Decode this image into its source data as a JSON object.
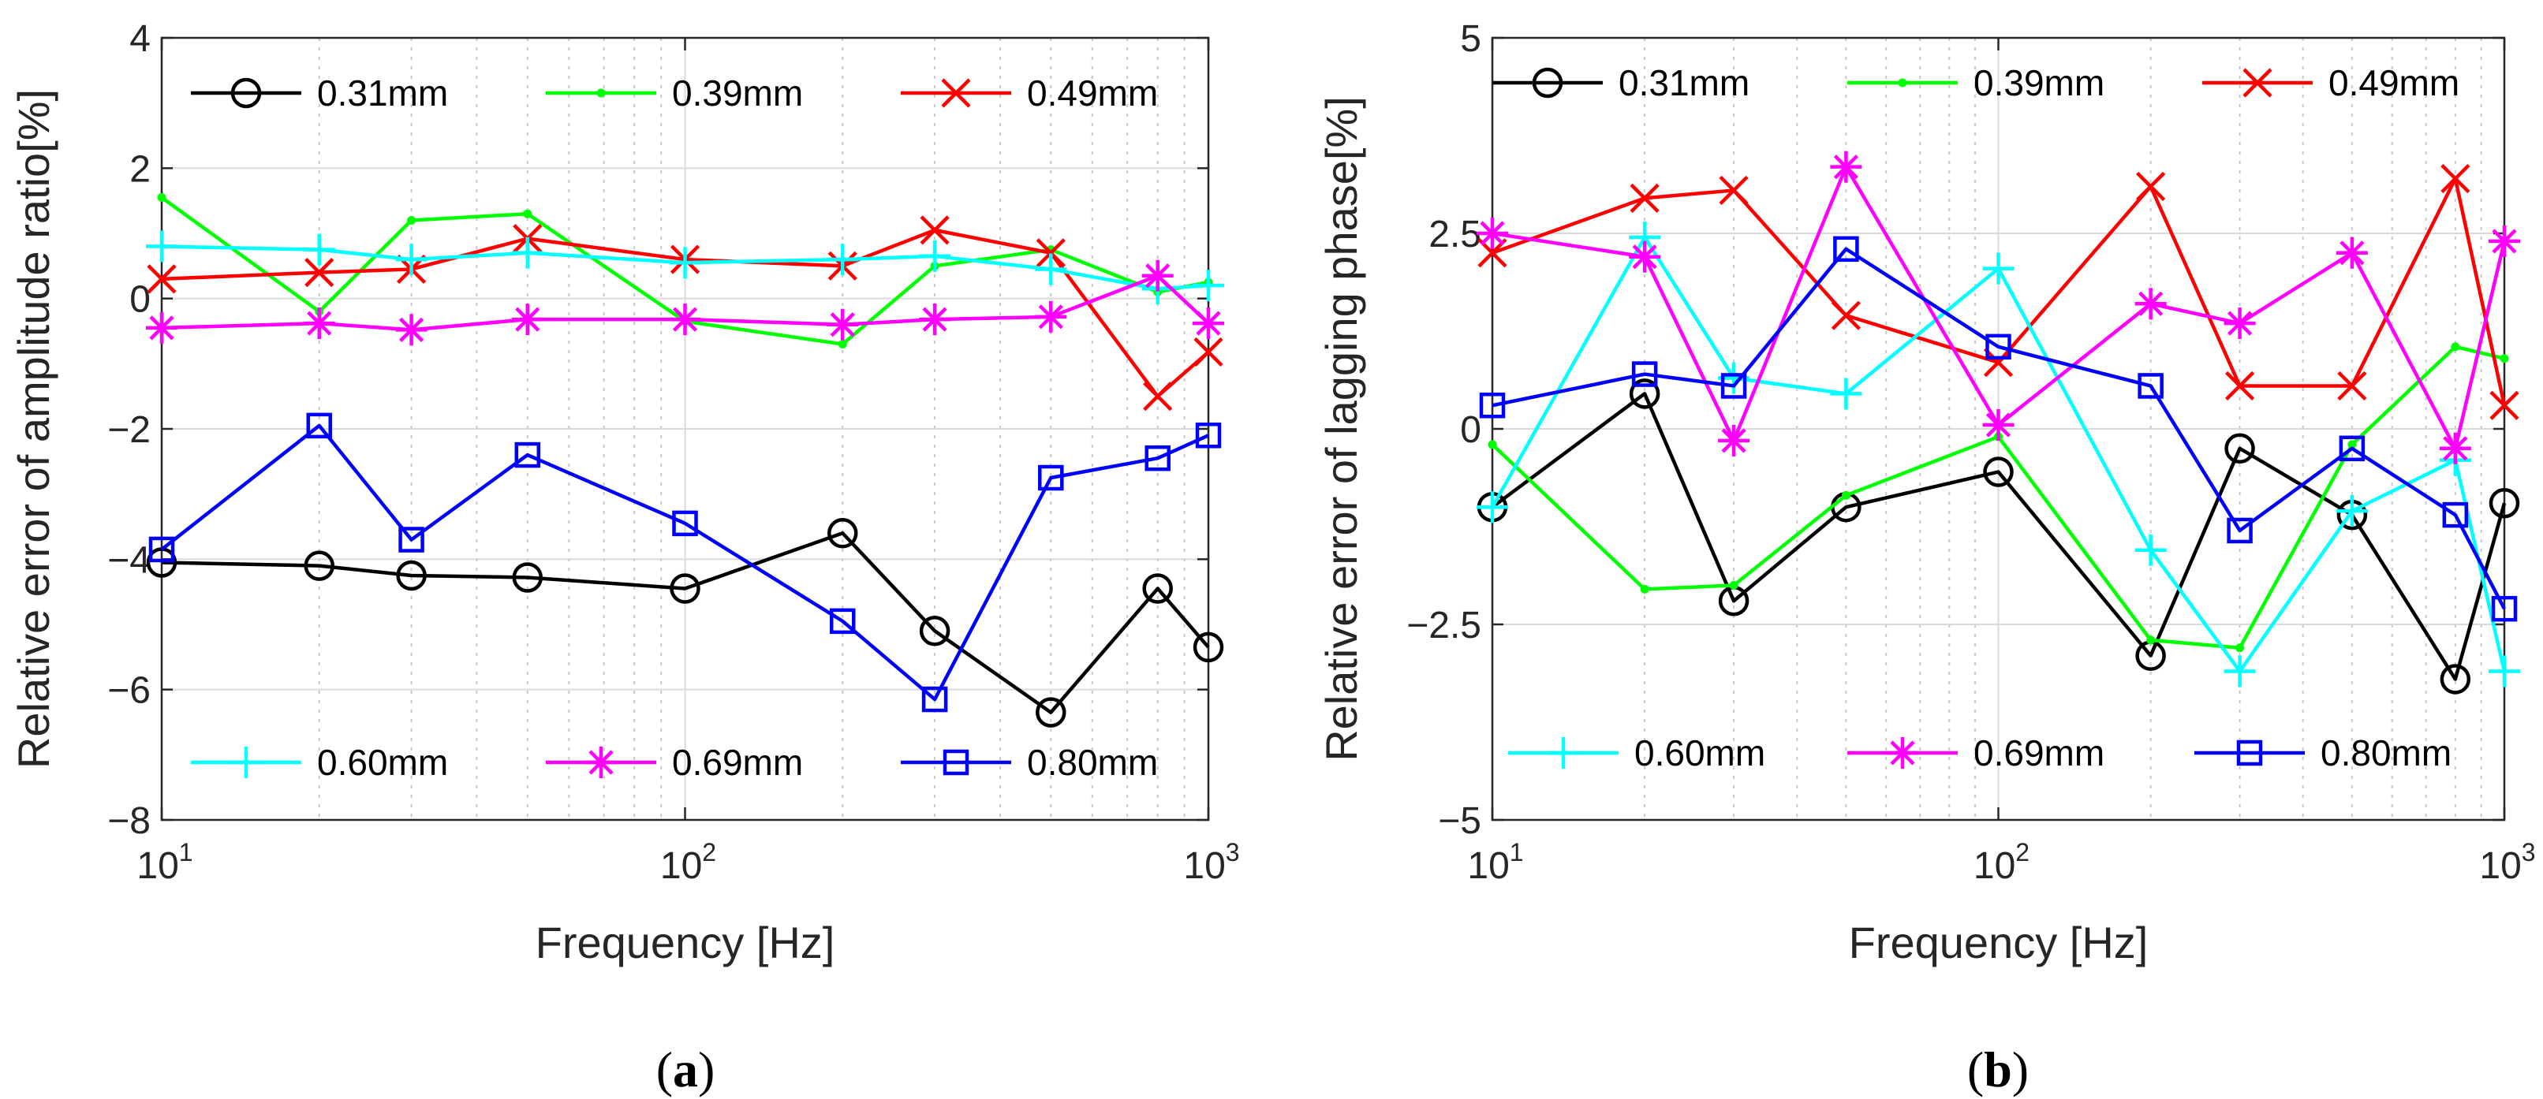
{
  "chart_data": [
    {
      "type": "line",
      "panel_label": "a",
      "xlabel": "Frequency [Hz]",
      "ylabel": "Relative error of amplitude ratio[%]",
      "xscale": "log",
      "xlim": [
        10,
        1000
      ],
      "ylim": [
        -8,
        4
      ],
      "yticks": [
        4,
        2,
        0,
        -2,
        -4,
        -6,
        -8
      ],
      "ytick_labels": [
        "4",
        "2",
        "0",
        "−2",
        "−4",
        "−6",
        "−8"
      ],
      "xtick_labels": [
        {
          "base": "10",
          "exp": "1"
        },
        {
          "base": "10",
          "exp": "2"
        },
        {
          "base": "10",
          "exp": "3"
        }
      ],
      "grid": true,
      "x": [
        10,
        20,
        30,
        50,
        100,
        200,
        300,
        500,
        800,
        1000
      ],
      "series": [
        {
          "name": "0.31mm",
          "color": "#000000",
          "marker": "circle",
          "values": [
            -4.05,
            -4.1,
            -4.25,
            -4.28,
            -4.45,
            -3.6,
            -5.1,
            -6.35,
            -4.45,
            -5.35
          ]
        },
        {
          "name": "0.39mm",
          "color": "#00ff00",
          "marker": "dot",
          "values": [
            1.55,
            -0.2,
            1.2,
            1.3,
            -0.35,
            -0.7,
            0.5,
            0.75,
            0.1,
            0.25
          ]
        },
        {
          "name": "0.49mm",
          "color": "#ff0000",
          "marker": "x",
          "values": [
            0.3,
            0.4,
            0.45,
            0.92,
            0.6,
            0.5,
            1.05,
            0.7,
            -1.5,
            -0.82
          ]
        },
        {
          "name": "0.60mm",
          "color": "#00ffff",
          "marker": "plus",
          "values": [
            0.8,
            0.75,
            0.6,
            0.7,
            0.55,
            0.6,
            0.65,
            0.45,
            0.15,
            0.2
          ]
        },
        {
          "name": "0.69mm",
          "color": "#ff00ff",
          "marker": "star",
          "values": [
            -0.45,
            -0.38,
            -0.48,
            -0.32,
            -0.32,
            -0.4,
            -0.32,
            -0.28,
            0.35,
            -0.38
          ]
        },
        {
          "name": "0.80mm",
          "color": "#0000ff",
          "marker": "square",
          "values": [
            -3.85,
            -1.95,
            -3.7,
            -2.4,
            -3.45,
            -4.95,
            -6.15,
            -2.75,
            -2.45,
            -2.1
          ]
        }
      ],
      "legends": [
        {
          "position": "top",
          "entries": [
            "0.31mm",
            "0.39mm",
            "0.49mm"
          ]
        },
        {
          "position": "bottom",
          "entries": [
            "0.60mm",
            "0.69mm",
            "0.80mm"
          ]
        }
      ]
    },
    {
      "type": "line",
      "panel_label": "b",
      "xlabel": "Frequency [Hz]",
      "ylabel": "Relative error of lagging phase[%]",
      "xscale": "log",
      "xlim": [
        10,
        1000
      ],
      "ylim": [
        -5,
        5
      ],
      "yticks": [
        5,
        2.5,
        0,
        -2.5,
        -5
      ],
      "ytick_labels": [
        "5",
        "2.5",
        "0",
        "−2.5",
        "−5"
      ],
      "xtick_labels": [
        {
          "base": "10",
          "exp": "1"
        },
        {
          "base": "10",
          "exp": "2"
        },
        {
          "base": "10",
          "exp": "3"
        }
      ],
      "grid": true,
      "x": [
        10,
        20,
        30,
        50,
        100,
        200,
        300,
        500,
        800,
        1000
      ],
      "series": [
        {
          "name": "0.31mm",
          "color": "#000000",
          "marker": "circle",
          "values": [
            -1.0,
            0.45,
            -2.2,
            -1.0,
            -0.55,
            -2.9,
            -0.25,
            -1.1,
            -3.2,
            -0.95
          ]
        },
        {
          "name": "0.39mm",
          "color": "#00ff00",
          "marker": "dot",
          "values": [
            -0.2,
            -2.05,
            -2.0,
            -0.85,
            -0.1,
            -2.7,
            -2.8,
            -0.2,
            1.05,
            0.9
          ]
        },
        {
          "name": "0.49mm",
          "color": "#ff0000",
          "marker": "x",
          "values": [
            2.25,
            2.95,
            3.05,
            1.45,
            0.85,
            3.1,
            0.55,
            0.55,
            3.2,
            0.3
          ]
        },
        {
          "name": "0.60mm",
          "color": "#00ffff",
          "marker": "plus",
          "values": [
            -1.0,
            2.45,
            0.65,
            0.45,
            2.05,
            -1.55,
            -3.1,
            -1.05,
            -0.4,
            -3.1
          ]
        },
        {
          "name": "0.69mm",
          "color": "#ff00ff",
          "marker": "star",
          "values": [
            2.5,
            2.2,
            -0.15,
            3.35,
            0.05,
            1.6,
            1.35,
            2.25,
            -0.25,
            2.4
          ]
        },
        {
          "name": "0.80mm",
          "color": "#0000ff",
          "marker": "square",
          "values": [
            0.3,
            0.7,
            0.55,
            2.3,
            1.05,
            0.55,
            -1.3,
            -0.25,
            -1.1,
            -2.3
          ]
        }
      ],
      "legends": [
        {
          "position": "top",
          "entries": [
            "0.31mm",
            "0.39mm",
            "0.49mm"
          ]
        },
        {
          "position": "bottom",
          "entries": [
            "0.60mm",
            "0.69mm",
            "0.80mm"
          ]
        }
      ]
    }
  ]
}
